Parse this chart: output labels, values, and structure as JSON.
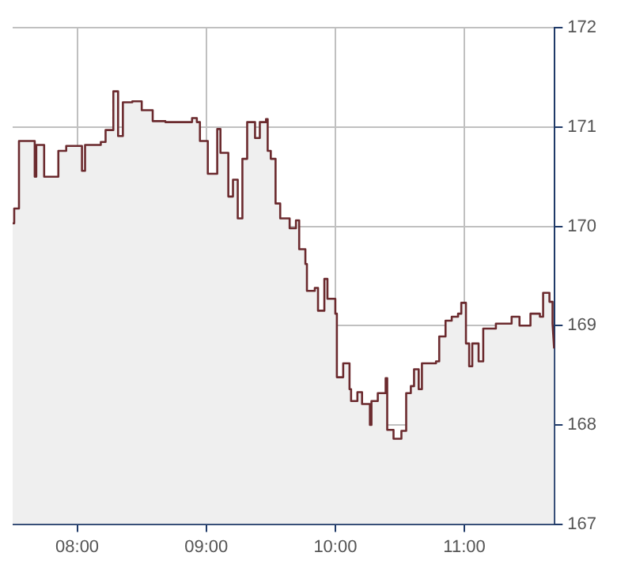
{
  "chart_data": {
    "type": "area",
    "x": [
      7.5,
      7.512,
      7.512,
      7.549,
      7.549,
      7.671,
      7.671,
      7.683,
      7.683,
      7.744,
      7.744,
      7.854,
      7.854,
      7.915,
      7.915,
      8.037,
      8.037,
      8.061,
      8.061,
      8.183,
      8.183,
      8.22,
      8.22,
      8.28,
      8.28,
      8.317,
      8.317,
      8.354,
      8.354,
      8.427,
      8.427,
      8.5,
      8.5,
      8.585,
      8.585,
      8.683,
      8.683,
      8.89,
      8.89,
      8.927,
      8.927,
      8.951,
      8.951,
      9.012,
      9.012,
      9.085,
      9.085,
      9.11,
      9.11,
      9.171,
      9.171,
      9.207,
      9.207,
      9.244,
      9.244,
      9.28,
      9.28,
      9.317,
      9.317,
      9.378,
      9.378,
      9.415,
      9.415,
      9.463,
      9.463,
      9.476,
      9.476,
      9.5,
      9.5,
      9.537,
      9.537,
      9.573,
      9.573,
      9.646,
      9.646,
      9.695,
      9.695,
      9.72,
      9.72,
      9.768,
      9.768,
      9.78,
      9.78,
      9.841,
      9.841,
      9.866,
      9.866,
      9.915,
      9.915,
      9.939,
      9.939,
      10.0,
      10.0,
      10.012,
      10.012,
      10.061,
      10.061,
      10.11,
      10.11,
      10.122,
      10.122,
      10.171,
      10.171,
      10.207,
      10.207,
      10.268,
      10.268,
      10.28,
      10.28,
      10.329,
      10.329,
      10.39,
      10.39,
      10.402,
      10.402,
      10.451,
      10.451,
      10.512,
      10.512,
      10.549,
      10.549,
      10.585,
      10.585,
      10.61,
      10.61,
      10.646,
      10.646,
      10.671,
      10.671,
      10.78,
      10.78,
      10.805,
      10.805,
      10.854,
      10.854,
      10.902,
      10.902,
      10.951,
      10.951,
      10.976,
      10.976,
      11.012,
      11.012,
      11.037,
      11.037,
      11.061,
      11.061,
      11.11,
      11.11,
      11.146,
      11.146,
      11.244,
      11.244,
      11.366,
      11.366,
      11.427,
      11.427,
      11.512,
      11.512,
      11.585,
      11.585,
      11.61,
      11.61,
      11.659,
      11.659,
      11.683,
      11.683,
      11.695
    ],
    "series": [
      {
        "color": "#6b2a2e",
        "values": [
          170.03,
          170.03,
          170.18,
          170.18,
          170.86,
          170.86,
          170.5,
          170.5,
          170.82,
          170.82,
          170.5,
          170.5,
          170.76,
          170.76,
          170.81,
          170.81,
          170.56,
          170.56,
          170.82,
          170.82,
          170.85,
          170.85,
          170.97,
          170.97,
          171.36,
          171.36,
          170.91,
          170.91,
          171.25,
          171.25,
          171.26,
          171.26,
          171.17,
          171.17,
          171.06,
          171.06,
          171.05,
          171.05,
          171.09,
          171.09,
          171.05,
          171.05,
          170.86,
          170.86,
          170.53,
          170.53,
          170.98,
          170.98,
          170.74,
          170.74,
          170.3,
          170.3,
          170.47,
          170.47,
          170.08,
          170.08,
          170.68,
          170.68,
          171.05,
          171.05,
          170.89,
          170.89,
          171.05,
          171.05,
          171.08,
          171.08,
          170.76,
          170.76,
          170.68,
          170.68,
          170.23,
          170.23,
          170.08,
          170.08,
          169.98,
          169.98,
          170.06,
          170.06,
          169.77,
          169.77,
          169.62,
          169.62,
          169.35,
          169.35,
          169.38,
          169.38,
          169.15,
          169.15,
          169.47,
          169.47,
          169.27,
          169.27,
          169.12,
          169.12,
          168.48,
          168.48,
          168.62,
          168.62,
          168.36,
          168.36,
          168.24,
          168.24,
          168.33,
          168.33,
          168.21,
          168.21,
          168.0,
          168.0,
          168.24,
          168.24,
          168.32,
          168.32,
          168.47,
          168.47,
          167.95,
          167.95,
          167.86,
          167.86,
          167.94,
          167.94,
          168.32,
          168.32,
          168.39,
          168.39,
          168.56,
          168.56,
          168.36,
          168.36,
          168.62,
          168.62,
          168.64,
          168.64,
          168.89,
          168.89,
          169.05,
          169.05,
          169.09,
          169.09,
          169.12,
          169.12,
          169.23,
          169.23,
          168.82,
          168.82,
          168.59,
          168.59,
          168.82,
          168.82,
          168.64,
          168.64,
          168.97,
          168.97,
          169.02,
          169.02,
          169.09,
          169.09,
          169.0,
          169.0,
          169.12,
          169.12,
          169.09,
          169.09,
          169.33,
          169.33,
          169.24,
          169.24,
          169.02,
          168.77
        ]
      }
    ],
    "xlim": [
      7.5,
      11.7
    ],
    "xticks": [
      {
        "value": 8,
        "label": "08:00"
      },
      {
        "value": 9,
        "label": "09:00"
      },
      {
        "value": 10,
        "label": "10:00"
      },
      {
        "value": 11,
        "label": "11:00"
      }
    ],
    "ylim": [
      167,
      172
    ],
    "yticks": [
      167,
      168,
      169,
      170,
      171,
      172
    ],
    "grid": true,
    "legend": false
  }
}
